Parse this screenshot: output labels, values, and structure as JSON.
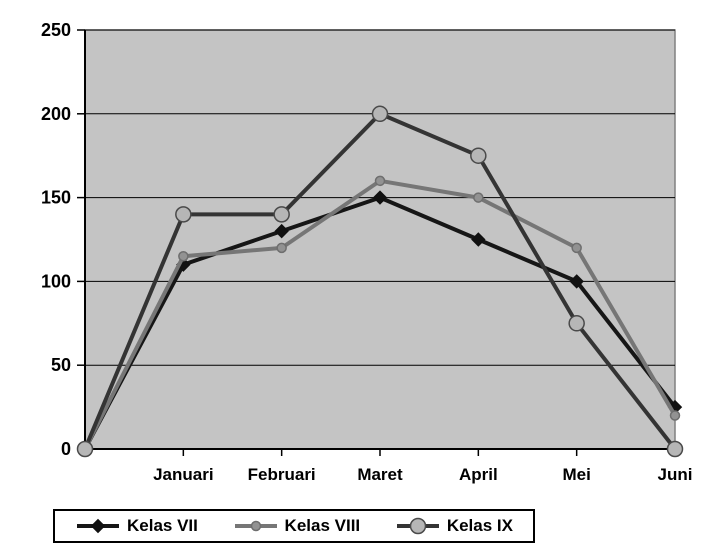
{
  "chart_data": {
    "type": "line",
    "title": "",
    "xlabel": "",
    "ylabel": "",
    "categories": [
      "",
      "Januari",
      "Februari",
      "Maret",
      "April",
      "Mei",
      "Juni"
    ],
    "series": [
      {
        "name": "Kelas VII",
        "values": [
          0,
          110,
          130,
          150,
          125,
          100,
          25
        ],
        "line_color": "#161616",
        "marker": "diamond",
        "marker_fill": "#111111",
        "marker_stroke": "#111111",
        "marker_size": 13
      },
      {
        "name": "Kelas VIII",
        "values": [
          0,
          115,
          120,
          160,
          150,
          120,
          20
        ],
        "line_color": "#767676",
        "marker": "circle",
        "marker_fill": "#929292",
        "marker_stroke": "#6e6e6e",
        "marker_size": 9
      },
      {
        "name": "Kelas IX",
        "values": [
          0,
          140,
          140,
          200,
          175,
          75,
          0
        ],
        "line_color": "#343434",
        "marker": "circle",
        "marker_fill": "#b6b6b6",
        "marker_stroke": "#4a4a4a",
        "marker_size": 15
      }
    ],
    "ylim": [
      0,
      250
    ],
    "yticks": [
      0,
      50,
      100,
      150,
      200,
      250
    ],
    "grid": true,
    "legend_position": "bottom",
    "colors": {
      "page_background": "#ffffff",
      "plot_background": "#c4c4c4",
      "plot_border": "#808080",
      "grid_line": "#000000",
      "axis_line": "#000000",
      "text": "#000000",
      "legend_border": "#000000",
      "legend_background": "#ffffff"
    }
  }
}
